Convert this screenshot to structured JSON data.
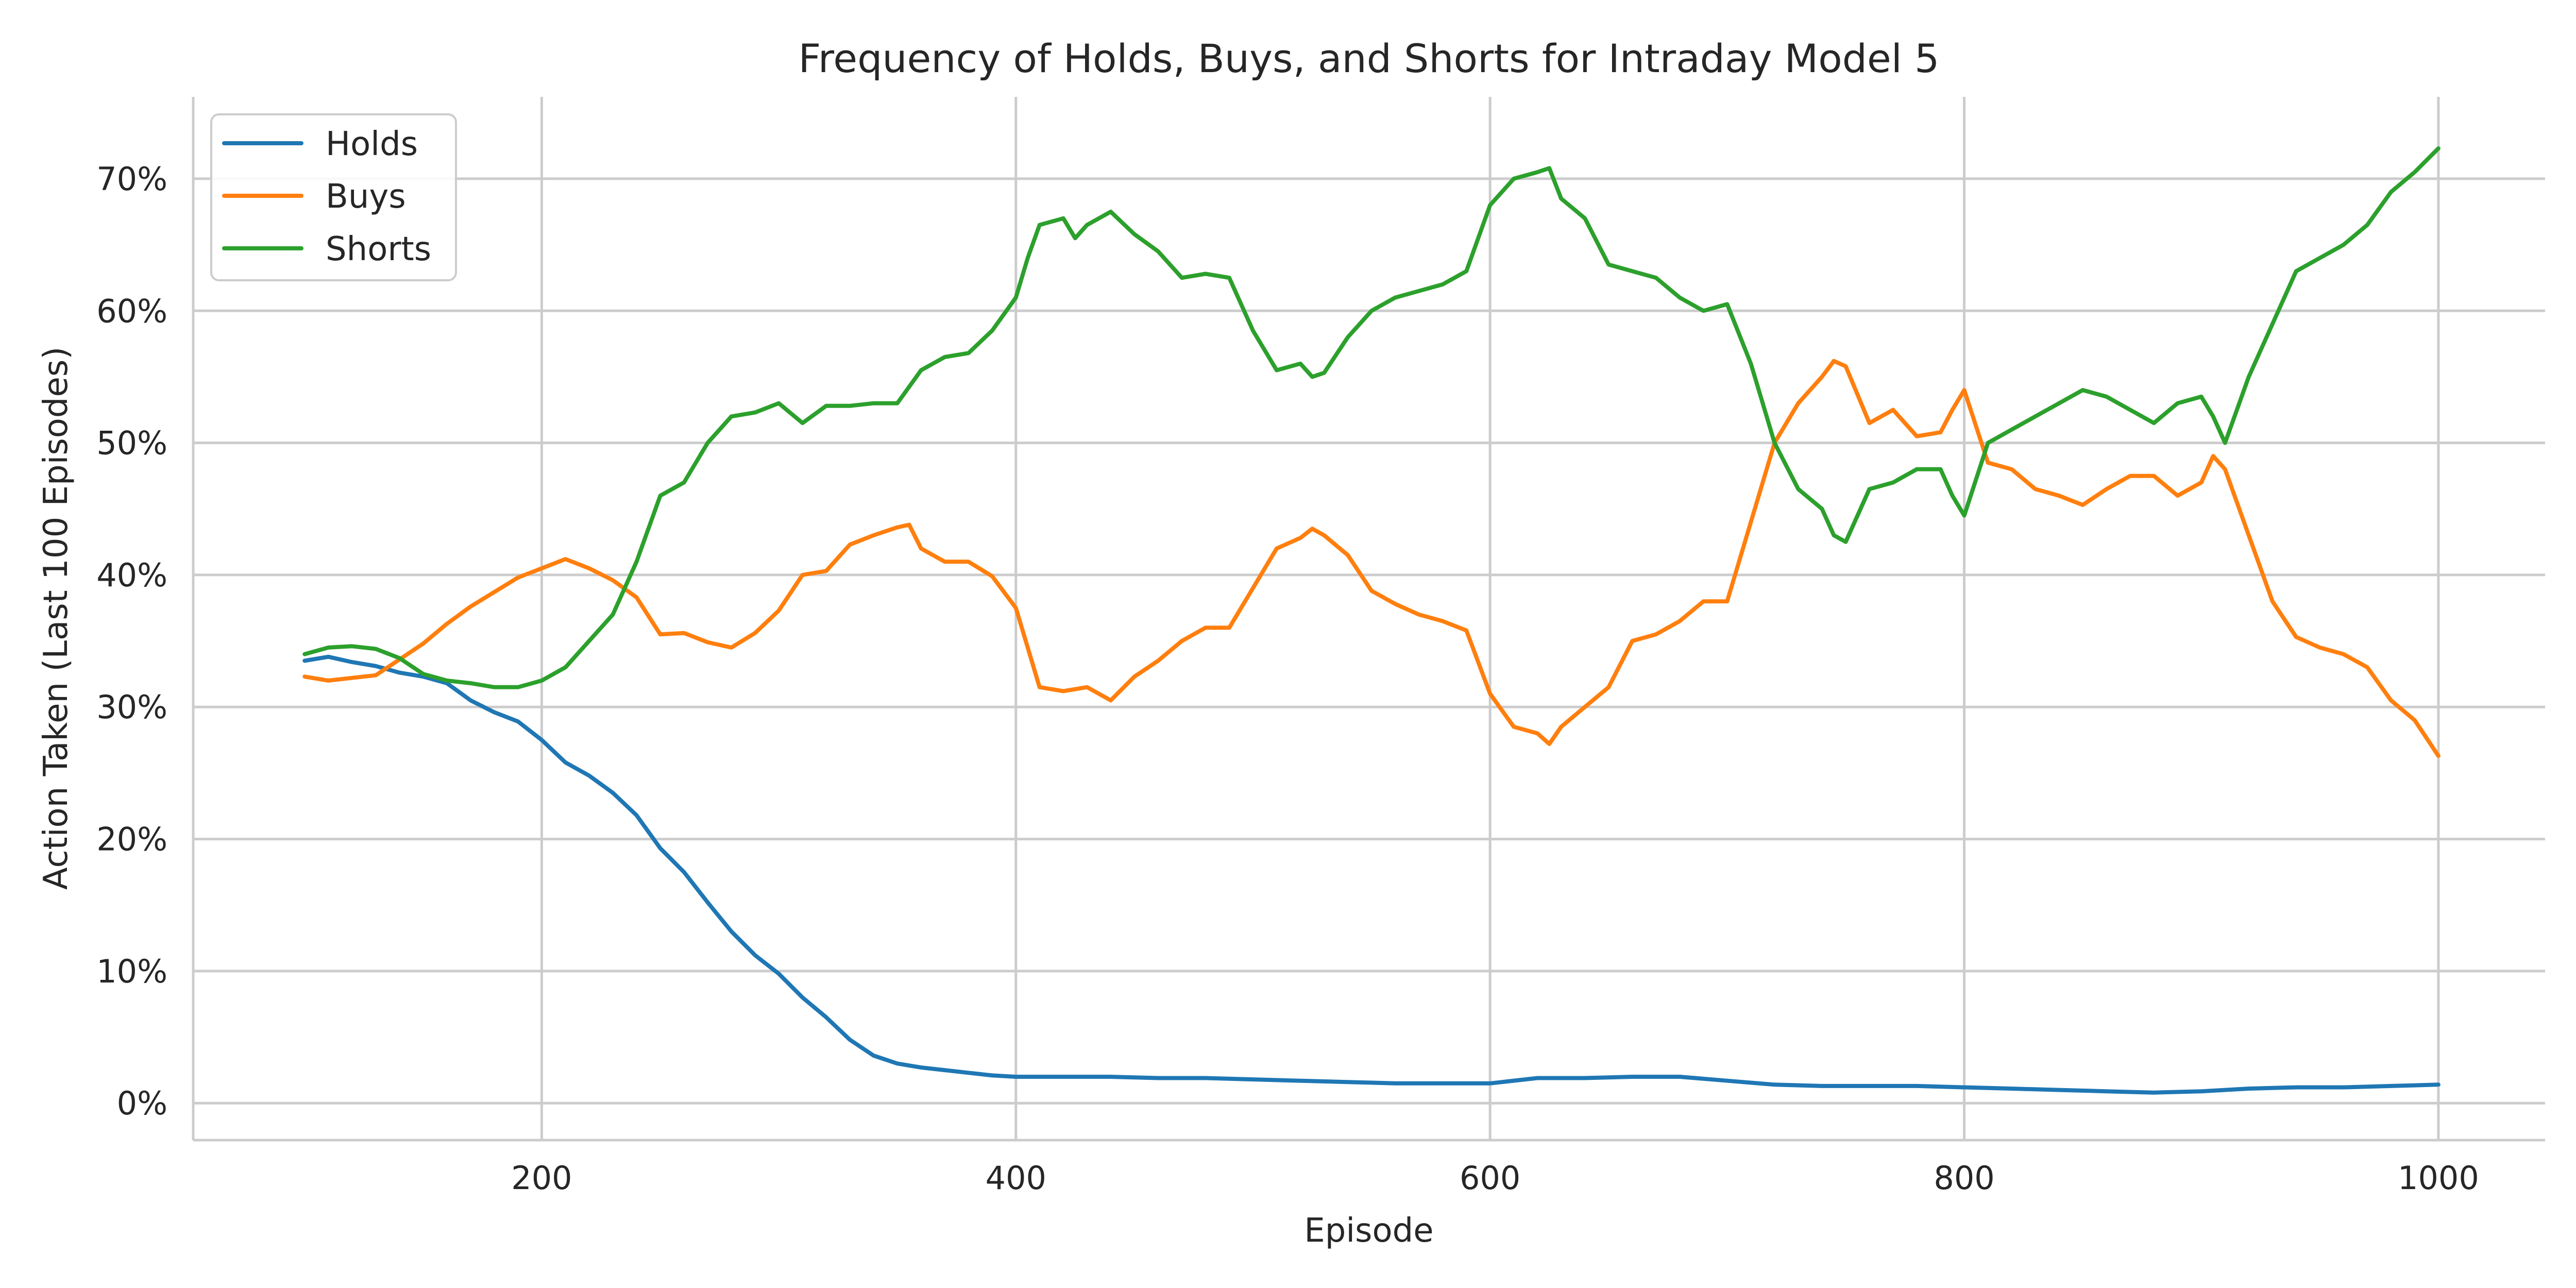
{
  "chart_data": {
    "type": "line",
    "title": "Frequency of Holds, Buys, and Shorts for Intraday Model 5",
    "xlabel": "Episode",
    "ylabel": "Action Taken (Last 100 Episodes)",
    "xlim": [
      53,
      1045
    ],
    "ylim": [
      -2.8,
      76.2
    ],
    "xticks": [
      200,
      400,
      600,
      800,
      1000
    ],
    "xtick_labels": [
      "200",
      "400",
      "600",
      "800",
      "1000"
    ],
    "yticks": [
      0,
      10,
      20,
      30,
      40,
      50,
      60,
      70
    ],
    "ytick_labels": [
      "0%",
      "10%",
      "20%",
      "30%",
      "40%",
      "50%",
      "60%",
      "70%"
    ],
    "grid": true,
    "legend_position": "top-left",
    "series": [
      {
        "name": "Holds",
        "color": "#1f77b4",
        "x": [
          100,
          110,
          120,
          130,
          140,
          150,
          160,
          170,
          180,
          190,
          200,
          210,
          220,
          230,
          240,
          250,
          260,
          270,
          280,
          290,
          300,
          310,
          320,
          330,
          340,
          350,
          360,
          370,
          380,
          390,
          400,
          410,
          420,
          440,
          460,
          480,
          500,
          520,
          540,
          560,
          580,
          600,
          620,
          640,
          660,
          680,
          700,
          720,
          740,
          760,
          780,
          800,
          820,
          840,
          860,
          880,
          900,
          920,
          940,
          960,
          980,
          1000
        ],
        "values": [
          33.5,
          33.8,
          33.4,
          33.1,
          32.6,
          32.3,
          31.8,
          30.5,
          29.6,
          28.9,
          27.5,
          25.8,
          24.8,
          23.5,
          21.8,
          19.3,
          17.5,
          15.2,
          13.0,
          11.2,
          9.8,
          8.0,
          6.5,
          4.8,
          3.6,
          3.0,
          2.7,
          2.5,
          2.3,
          2.1,
          2.0,
          2.0,
          2.0,
          2.0,
          1.9,
          1.9,
          1.8,
          1.7,
          1.6,
          1.5,
          1.5,
          1.5,
          1.9,
          1.9,
          2.0,
          2.0,
          1.7,
          1.4,
          1.3,
          1.3,
          1.3,
          1.2,
          1.1,
          1.0,
          0.9,
          0.8,
          0.9,
          1.1,
          1.2,
          1.2,
          1.3,
          1.4
        ]
      },
      {
        "name": "Buys",
        "color": "#ff7f0e",
        "x": [
          100,
          110,
          120,
          130,
          140,
          150,
          160,
          170,
          180,
          190,
          200,
          210,
          220,
          230,
          240,
          250,
          260,
          270,
          280,
          290,
          300,
          310,
          320,
          330,
          340,
          350,
          355,
          360,
          370,
          380,
          390,
          400,
          410,
          420,
          430,
          440,
          450,
          460,
          470,
          480,
          490,
          500,
          510,
          520,
          525,
          530,
          540,
          550,
          560,
          570,
          580,
          590,
          600,
          610,
          620,
          625,
          630,
          640,
          650,
          660,
          670,
          680,
          690,
          700,
          710,
          720,
          730,
          740,
          745,
          750,
          760,
          770,
          780,
          790,
          795,
          800,
          810,
          820,
          830,
          840,
          850,
          860,
          870,
          880,
          890,
          900,
          905,
          910,
          920,
          930,
          940,
          950,
          960,
          970,
          980,
          990,
          1000
        ],
        "values": [
          32.3,
          32.0,
          32.2,
          32.4,
          33.6,
          34.8,
          36.3,
          37.6,
          38.7,
          39.8,
          40.5,
          41.2,
          40.5,
          39.6,
          38.3,
          35.5,
          35.6,
          34.9,
          34.5,
          35.6,
          37.3,
          40.0,
          40.3,
          42.3,
          43.0,
          43.6,
          43.8,
          42.0,
          41.0,
          41.0,
          39.9,
          37.5,
          31.5,
          31.2,
          31.5,
          30.5,
          32.3,
          33.5,
          35.0,
          36.0,
          36.0,
          39.0,
          42.0,
          42.8,
          43.5,
          43.0,
          41.5,
          38.8,
          37.8,
          37.0,
          36.5,
          35.8,
          31.0,
          28.5,
          28.0,
          27.2,
          28.5,
          30.0,
          31.5,
          35.0,
          35.5,
          36.5,
          38.0,
          38.0,
          44.0,
          50.0,
          53.0,
          55.0,
          56.2,
          55.8,
          51.5,
          52.5,
          50.5,
          50.8,
          52.5,
          54.0,
          48.5,
          48.0,
          46.5,
          46.0,
          45.3,
          46.5,
          47.5,
          47.5,
          46.0,
          47.0,
          49.0,
          48.0,
          43.0,
          38.0,
          35.3,
          34.5,
          34.0,
          33.0,
          30.5,
          29.0,
          26.3
        ]
      },
      {
        "name": "Shorts",
        "color": "#2ca02c",
        "x": [
          100,
          110,
          120,
          130,
          140,
          150,
          160,
          170,
          180,
          190,
          200,
          210,
          220,
          230,
          240,
          250,
          260,
          270,
          280,
          290,
          300,
          310,
          320,
          330,
          340,
          350,
          360,
          370,
          380,
          390,
          400,
          405,
          410,
          420,
          425,
          430,
          440,
          450,
          460,
          470,
          480,
          490,
          500,
          510,
          520,
          525,
          530,
          540,
          550,
          560,
          570,
          580,
          590,
          600,
          610,
          620,
          625,
          630,
          640,
          650,
          660,
          670,
          680,
          690,
          700,
          710,
          720,
          730,
          740,
          745,
          750,
          760,
          770,
          780,
          790,
          795,
          800,
          810,
          820,
          830,
          840,
          850,
          860,
          870,
          880,
          890,
          900,
          905,
          910,
          920,
          930,
          940,
          950,
          960,
          970,
          980,
          990,
          1000
        ],
        "values": [
          34.0,
          34.5,
          34.6,
          34.4,
          33.7,
          32.5,
          32.0,
          31.8,
          31.5,
          31.5,
          32.0,
          33.0,
          35.0,
          37.0,
          41.0,
          46.0,
          47.0,
          50.0,
          52.0,
          52.3,
          53.0,
          51.5,
          52.8,
          52.8,
          53.0,
          53.0,
          55.5,
          56.5,
          56.8,
          58.5,
          61.0,
          64.0,
          66.5,
          67.0,
          65.5,
          66.5,
          67.5,
          65.8,
          64.5,
          62.5,
          62.8,
          62.5,
          58.5,
          55.5,
          56.0,
          55.0,
          55.3,
          58.0,
          60.0,
          61.0,
          61.5,
          62.0,
          63.0,
          68.0,
          70.0,
          70.5,
          70.8,
          68.5,
          67.0,
          63.5,
          63.0,
          62.5,
          61.0,
          60.0,
          60.5,
          56.0,
          50.0,
          46.5,
          45.0,
          43.0,
          42.5,
          46.5,
          47.0,
          48.0,
          48.0,
          46.0,
          44.5,
          50.0,
          51.0,
          52.0,
          53.0,
          54.0,
          53.5,
          52.5,
          51.5,
          53.0,
          53.5,
          52.0,
          50.0,
          55.0,
          59.0,
          63.0,
          64.0,
          65.0,
          66.5,
          69.0,
          70.5,
          72.3
        ]
      }
    ]
  }
}
